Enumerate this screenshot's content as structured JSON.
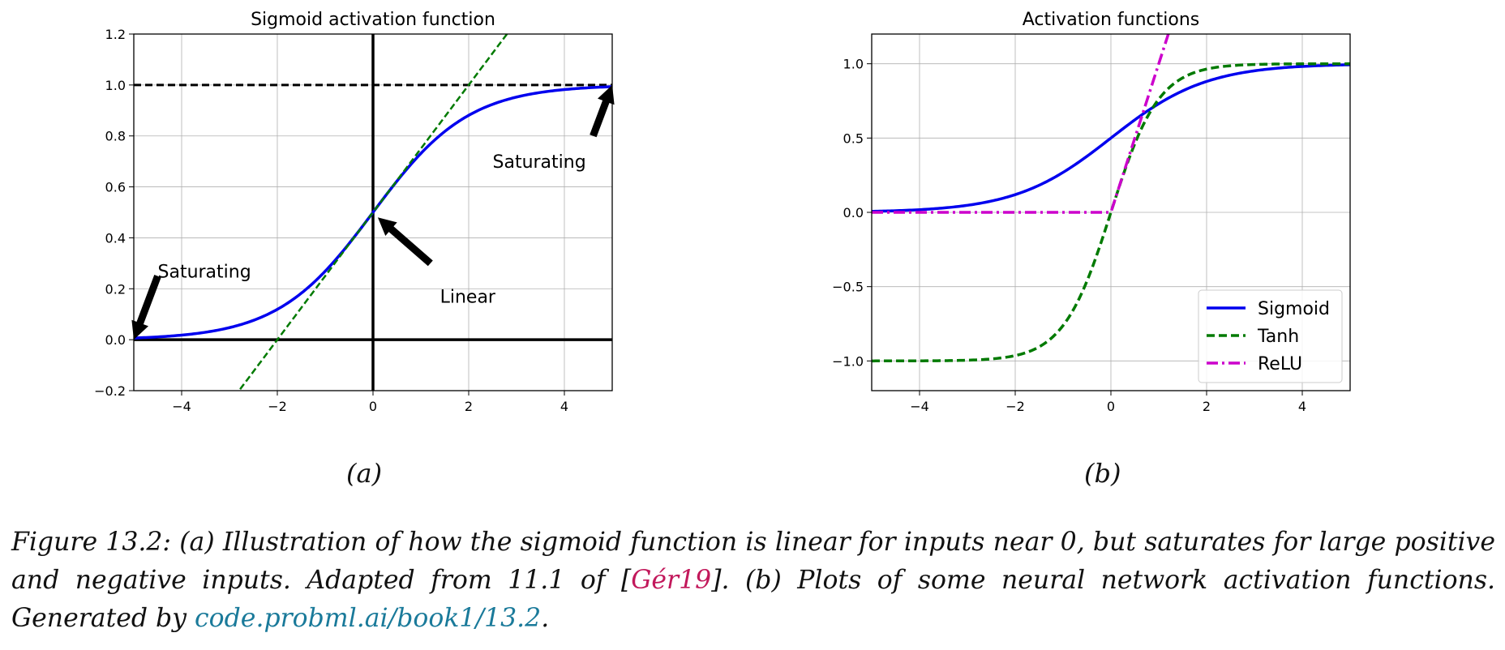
{
  "figure": {
    "subfigure_labels": [
      "(a)",
      "(b)"
    ],
    "caption": {
      "prefix": "Figure 13.2: (a) Illustration of how the sigmoid function is linear for inputs near 0, but saturates for large positive and negative inputs. Adapted from 11.1 of [",
      "citation": "Gér19",
      "middle": "]. (b) Plots of some neural network activation functions. Generated by ",
      "link": "code.probml.ai/book1/13.2",
      "suffix": "."
    }
  },
  "colors": {
    "sigmoid": "#0000ee",
    "tanh": "#007a00",
    "relu": "#cc00cc",
    "citation": "#c2185b",
    "link": "#1a7a9a"
  },
  "chart_data": [
    {
      "type": "line",
      "title": "Sigmoid activation function",
      "xlim": [
        -5,
        5
      ],
      "ylim": [
        -0.2,
        1.2
      ],
      "xticks": [
        -4,
        -2,
        0,
        2,
        4
      ],
      "yticks": [
        -0.2,
        0.0,
        0.2,
        0.4,
        0.6,
        0.8,
        1.0,
        1.2
      ],
      "grid": true,
      "series": [
        {
          "function": "sigmoid",
          "style": "solid",
          "color": "#0000ee",
          "x_range": [
            -5,
            5
          ]
        },
        {
          "function": "0.25*x + 0.5",
          "style": "dashed",
          "color": "#007a00",
          "x_range": [
            -2.9,
            2.8
          ]
        }
      ],
      "reference_lines": [
        {
          "orientation": "horizontal",
          "y": 1.0,
          "style": "dashed"
        },
        {
          "orientation": "horizontal",
          "y": 0.0,
          "style": "solid"
        },
        {
          "orientation": "vertical",
          "x": 0.0,
          "style": "solid"
        }
      ],
      "annotations": [
        {
          "text": "Saturating",
          "text_at": [
            2.5,
            0.7
          ],
          "arrow_to": [
            5.0,
            1.0
          ],
          "arrow_from": [
            4.6,
            0.8
          ]
        },
        {
          "text": "Saturating",
          "text_at": [
            -4.5,
            0.27
          ],
          "arrow_to": [
            -5.0,
            0.0
          ],
          "arrow_from": [
            -4.5,
            0.25
          ]
        },
        {
          "text": "Linear",
          "text_at": [
            1.4,
            0.17
          ],
          "arrow_to": [
            0.1,
            0.48
          ],
          "arrow_from": [
            1.2,
            0.3
          ]
        }
      ]
    },
    {
      "type": "line",
      "title": "Activation functions",
      "xlim": [
        -5,
        5
      ],
      "ylim": [
        -1.2,
        1.2
      ],
      "xticks": [
        -4,
        -2,
        0,
        2,
        4
      ],
      "yticks": [
        -1.0,
        -0.5,
        0.0,
        0.5,
        1.0
      ],
      "ytick_labels": [
        "−1.0",
        "−0.5",
        "0.0",
        "0.5",
        "1.0"
      ],
      "grid": true,
      "legend": "lower right",
      "series": [
        {
          "name": "Sigmoid",
          "function": "sigmoid",
          "style": "solid",
          "color": "#0000ee",
          "x_range": [
            -5,
            5
          ]
        },
        {
          "name": "Tanh",
          "function": "tanh",
          "style": "dashed",
          "color": "#007a00",
          "x_range": [
            -5,
            5
          ]
        },
        {
          "name": "ReLU",
          "function": "relu",
          "style": "dashdot",
          "color": "#cc00cc",
          "x_range": [
            -5,
            1.2
          ]
        }
      ]
    }
  ]
}
